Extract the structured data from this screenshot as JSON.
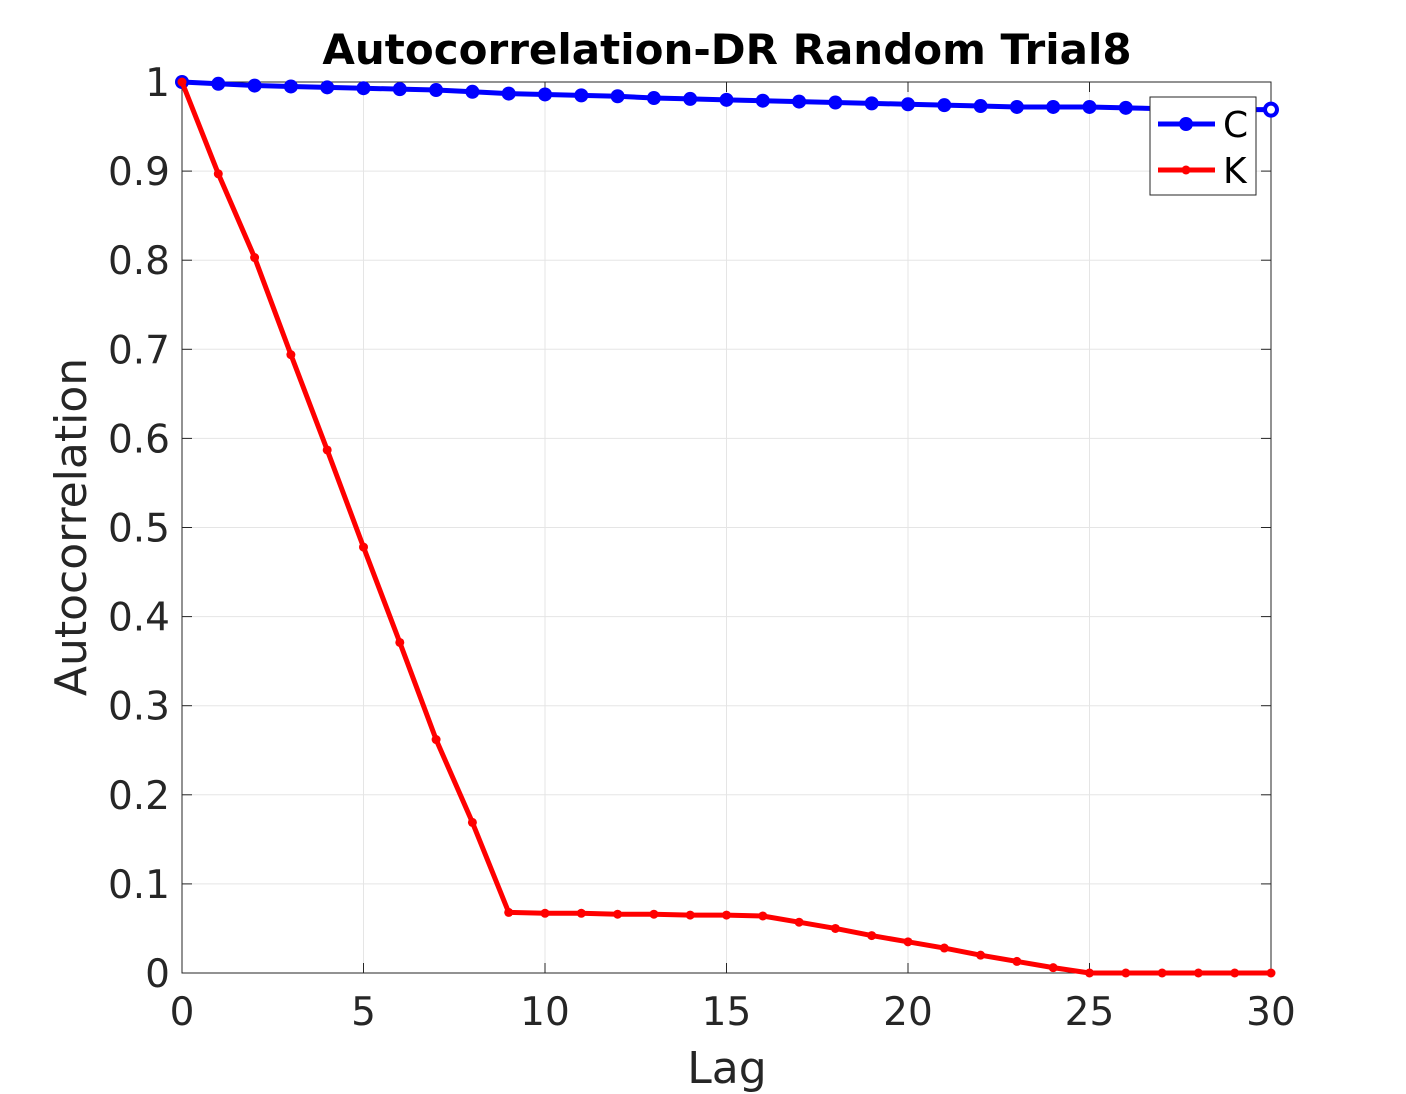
{
  "chart_data": {
    "type": "line",
    "title": "Autocorrelation-DR Random Trial8",
    "xlabel": "Lag",
    "ylabel": "Autocorrelation",
    "xlim": [
      0,
      30
    ],
    "ylim": [
      0,
      1
    ],
    "xticks": [
      0,
      5,
      10,
      15,
      20,
      25,
      30
    ],
    "yticks": [
      0,
      0.1,
      0.2,
      0.3,
      0.4,
      0.5,
      0.6,
      0.7,
      0.8,
      0.9,
      1
    ],
    "ytick_labels": [
      "0",
      "0.1",
      "0.2",
      "0.3",
      "0.4",
      "0.5",
      "0.6",
      "0.7",
      "0.8",
      "0.9",
      "1"
    ],
    "grid": true,
    "legend_position": "top-right",
    "x": [
      0,
      1,
      2,
      3,
      4,
      5,
      6,
      7,
      8,
      9,
      10,
      11,
      12,
      13,
      14,
      15,
      16,
      17,
      18,
      19,
      20,
      21,
      22,
      23,
      24,
      25,
      26,
      27,
      28,
      29,
      30
    ],
    "series": [
      {
        "name": "C",
        "color": "#0000ff",
        "marker": "large-circle",
        "values": [
          1.0,
          0.998,
          0.996,
          0.995,
          0.994,
          0.993,
          0.992,
          0.991,
          0.989,
          0.987,
          0.986,
          0.985,
          0.984,
          0.982,
          0.981,
          0.98,
          0.979,
          0.978,
          0.977,
          0.976,
          0.975,
          0.974,
          0.973,
          0.972,
          0.972,
          0.972,
          0.971,
          0.97,
          0.969,
          0.969,
          0.969
        ]
      },
      {
        "name": "K",
        "color": "#ff0000",
        "marker": "small-dot",
        "values": [
          1.0,
          0.897,
          0.803,
          0.694,
          0.587,
          0.478,
          0.371,
          0.262,
          0.169,
          0.068,
          0.067,
          0.067,
          0.066,
          0.066,
          0.065,
          0.065,
          0.064,
          0.057,
          0.05,
          0.042,
          0.035,
          0.028,
          0.02,
          0.013,
          0.006,
          0.0,
          0.0,
          0.0,
          0.0,
          0.0,
          0.0
        ]
      }
    ]
  }
}
